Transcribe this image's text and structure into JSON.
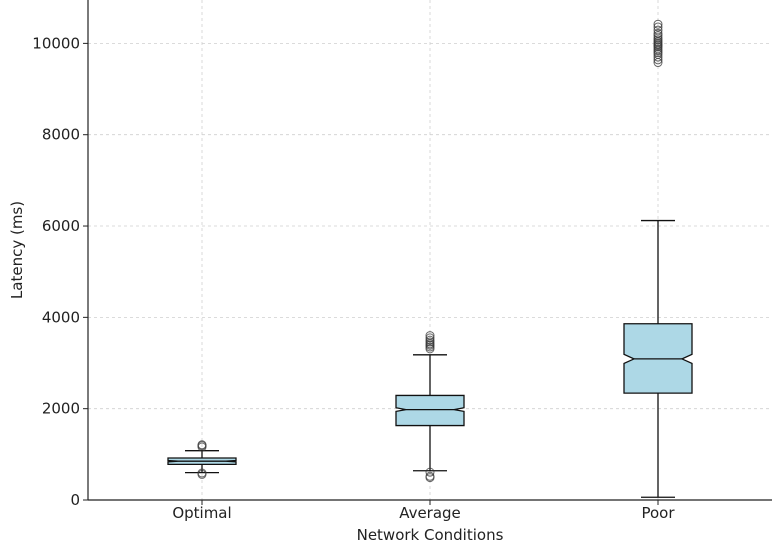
{
  "chart_data": {
    "type": "box",
    "title": "",
    "xlabel": "Network Conditions",
    "ylabel": "Latency (ms)",
    "categories": [
      "Optimal",
      "Average",
      "Poor"
    ],
    "ylim": [
      0,
      10950
    ],
    "yticks": [
      0,
      2000,
      4000,
      6000,
      8000,
      10000
    ],
    "grid": true,
    "notched": true,
    "box_color": "#add8e6",
    "boxes": [
      {
        "name": "Optimal",
        "whislo": 600,
        "q1": 780,
        "med": 850,
        "q3": 920,
        "whishi": 1080,
        "notch_lo": 835,
        "notch_hi": 865,
        "fliers": [
          560,
          590,
          1160,
          1190,
          1210
        ]
      },
      {
        "name": "Average",
        "whislo": 640,
        "q1": 1630,
        "med": 1980,
        "q3": 2290,
        "whishi": 3180,
        "notch_lo": 1940,
        "notch_hi": 2020,
        "fliers": [
          490,
          520,
          610,
          3310,
          3350,
          3390,
          3420,
          3460,
          3500,
          3550,
          3600
        ]
      },
      {
        "name": "Poor",
        "whislo": 60,
        "q1": 2340,
        "med": 3090,
        "q3": 3860,
        "whishi": 6120,
        "notch_lo": 2990,
        "notch_hi": 3190,
        "fliers": [
          9580,
          9640,
          9700,
          9760,
          9800,
          9840,
          9880,
          9920,
          9950,
          9980,
          10010,
          10040,
          10080,
          10120,
          10170,
          10220,
          10290,
          10360,
          10420
        ]
      }
    ]
  }
}
